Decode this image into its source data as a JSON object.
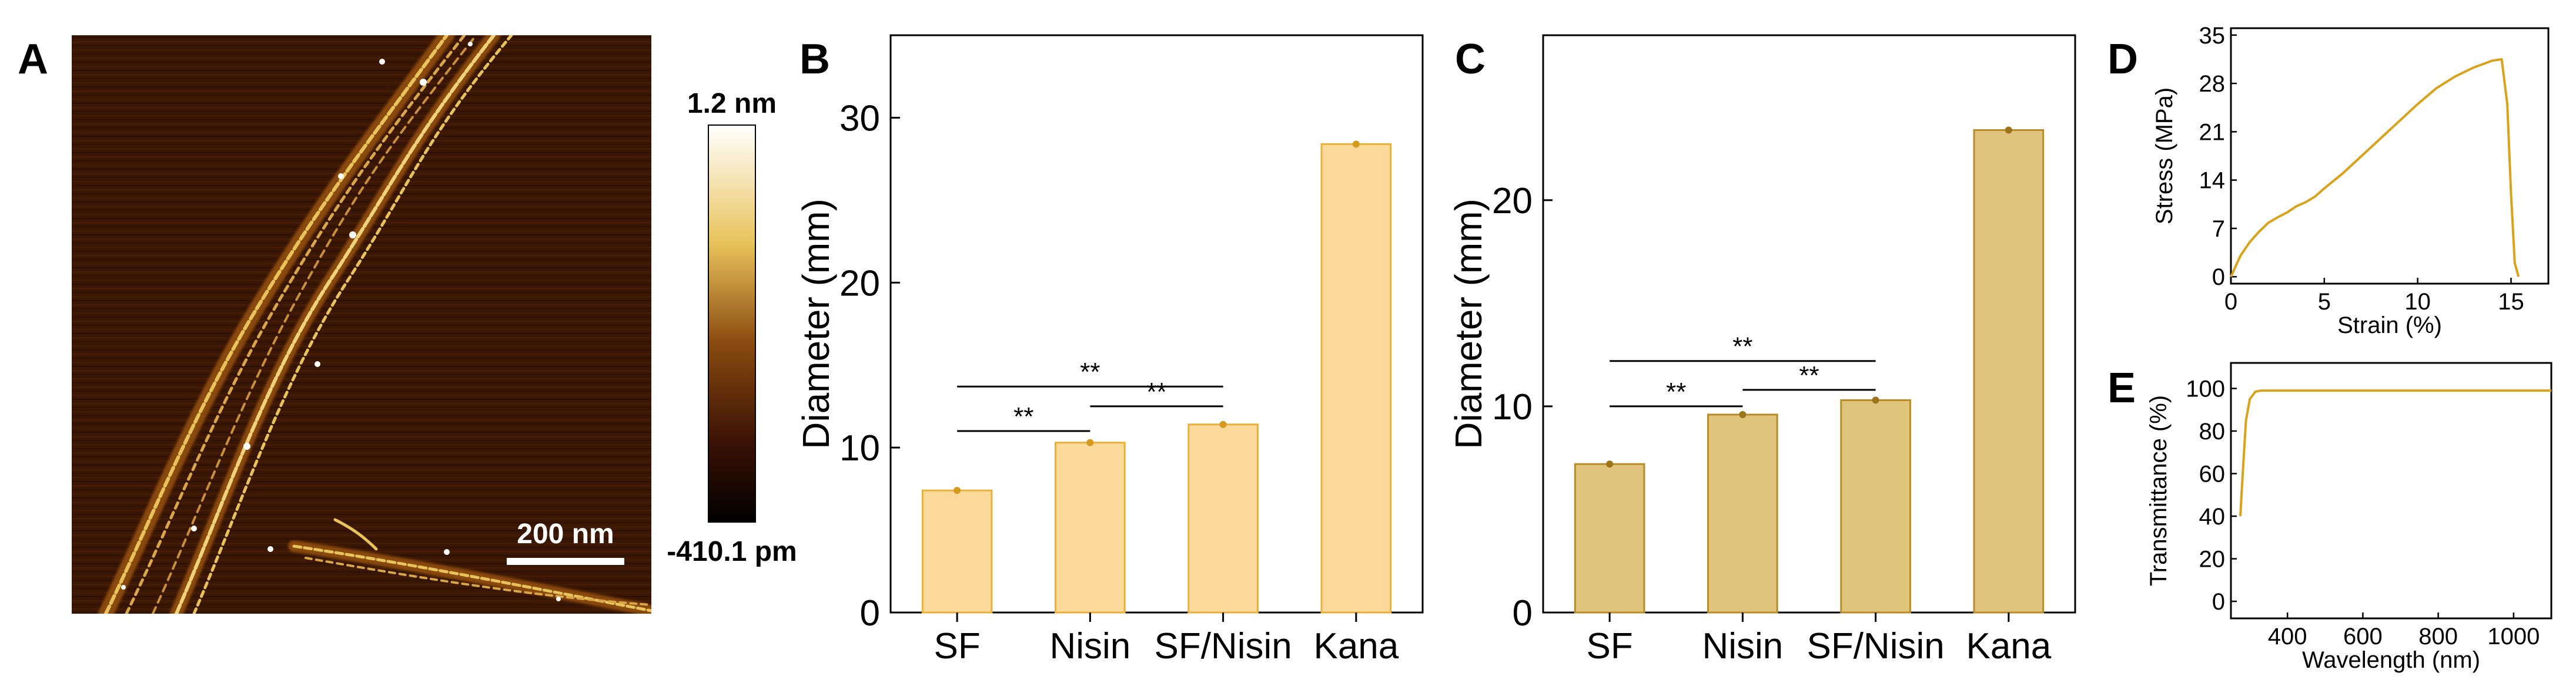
{
  "panels": {
    "A": {
      "letter": "A",
      "colorbar_max": "1.2 nm",
      "colorbar_min": "-410.1 pm",
      "scale_bar": "200 nm",
      "colors": {
        "dark": "#2a0d02",
        "mid": "#8a4a10",
        "bright": "#e8c25a",
        "white": "#ffffff"
      }
    },
    "B": {
      "letter": "B"
    },
    "C": {
      "letter": "C"
    },
    "D": {
      "letter": "D"
    },
    "E": {
      "letter": "E"
    }
  },
  "chart_data": [
    {
      "id": "B",
      "type": "bar",
      "categories": [
        "SF",
        "Nisin",
        "SF/Nisin",
        "Kana"
      ],
      "values": [
        7.4,
        10.3,
        11.4,
        28.4
      ],
      "errors": [
        0.2,
        0.2,
        0.2,
        0.2
      ],
      "xlabel": "",
      "ylabel": "Diameter (mm)",
      "ylim": [
        0,
        35
      ],
      "yticks": [
        0,
        10,
        20,
        30
      ],
      "significance": [
        {
          "from": "Nisin",
          "to": "SF/Nisin",
          "label": "**",
          "level": 12.5
        },
        {
          "from": "SF",
          "to": "Nisin",
          "label": "**",
          "level": 11
        },
        {
          "from": "SF",
          "to": "SF/Nisin",
          "label": "**",
          "level": 13.7
        }
      ],
      "colors": {
        "fill": "#fbd99a",
        "edge": "#e8b13a",
        "point": "#d49a1e",
        "sig": "#000000"
      }
    },
    {
      "id": "C",
      "type": "bar",
      "categories": [
        "SF",
        "Nisin",
        "SF/Nisin",
        "Kana"
      ],
      "values": [
        7.2,
        9.6,
        10.3,
        23.4
      ],
      "errors": [
        0.1,
        0.1,
        0.1,
        0.1
      ],
      "xlabel": "",
      "ylabel": "Diameter (mm)",
      "ylim": [
        0,
        28
      ],
      "yticks": [
        0,
        10,
        20
      ],
      "significance": [
        {
          "from": "SF",
          "to": "Nisin",
          "label": "**",
          "level": 10
        },
        {
          "from": "Nisin",
          "to": "SF/Nisin",
          "label": "**",
          "level": 10.8
        },
        {
          "from": "SF",
          "to": "SF/Nisin",
          "label": "**",
          "level": 12.2
        }
      ],
      "colors": {
        "fill": "#e0c47c",
        "edge": "#b88c26",
        "point": "#9c741a",
        "sig": "#000000"
      }
    },
    {
      "id": "D",
      "type": "line",
      "xlabel": "Strain (%)",
      "ylabel": "Stress (MPa)",
      "xlim": [
        0,
        17
      ],
      "ylim": [
        -1,
        36
      ],
      "xticks": [
        0,
        5,
        10,
        15
      ],
      "yticks": [
        0,
        7,
        14,
        21,
        28,
        35
      ],
      "x": [
        0,
        0.5,
        1,
        1.5,
        2,
        2.5,
        3,
        3.5,
        4,
        4.5,
        5,
        6,
        7,
        8,
        9,
        10,
        11,
        12,
        13,
        14,
        14.5,
        14.8,
        15,
        15.2,
        15.4
      ],
      "y": [
        0,
        3,
        5,
        6.5,
        7.8,
        8.6,
        9.3,
        10.2,
        10.8,
        11.6,
        12.8,
        15,
        17.5,
        20,
        22.5,
        25,
        27.3,
        29,
        30.3,
        31.3,
        31.5,
        25,
        12,
        2,
        0
      ],
      "colors": {
        "line": "#d9a21b"
      }
    },
    {
      "id": "E",
      "type": "line",
      "xlabel": "Wavelength (nm)",
      "ylabel": "Transmittance (%)",
      "xlim": [
        250,
        1100
      ],
      "ylim": [
        -8,
        112
      ],
      "xticks": [
        400,
        600,
        800,
        1000
      ],
      "yticks": [
        0,
        20,
        40,
        60,
        80,
        100
      ],
      "x": [
        275,
        282,
        290,
        300,
        315,
        330,
        400,
        600,
        800,
        1000,
        1100
      ],
      "y": [
        40,
        62,
        85,
        95,
        98.5,
        99,
        99,
        99,
        99,
        99,
        99
      ],
      "colors": {
        "line": "#d9a21b"
      }
    }
  ]
}
